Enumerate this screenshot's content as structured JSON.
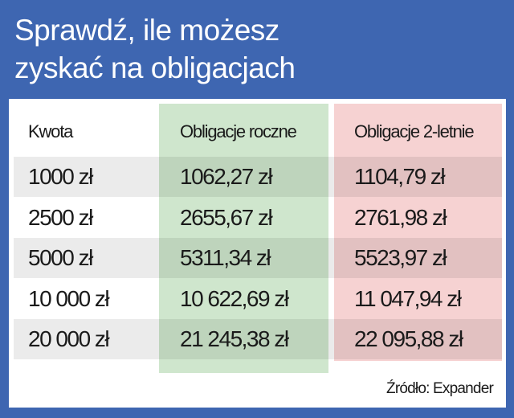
{
  "title_lines": [
    "Sprawdź, ile możesz",
    "zyskać na obligacjach"
  ],
  "colors": {
    "background": "#3e66b1",
    "green_column": "#cfe6cd",
    "pink_column": "#f6d2d2"
  },
  "chart_data": {
    "type": "table",
    "title": "Sprawdź, ile możesz zyskać na obligacjach",
    "columns": [
      "Kwota",
      "Obligacje roczne",
      "Obligacje 2-letnie"
    ],
    "rows": [
      [
        "1000 zł",
        "1062,27 zł",
        "1104,79 zł"
      ],
      [
        "2500 zł",
        "2655,67 zł",
        "2761,98 zł"
      ],
      [
        "5000 zł",
        "5311,34 zł",
        "5523,97 zł"
      ],
      [
        "10 000 zł",
        "10 622,69 zł",
        "11 047,94 zł"
      ],
      [
        "20 000 zł",
        "21 245,38 zł",
        "22 095,88 zł"
      ]
    ],
    "source": "Źródło: Expander"
  }
}
